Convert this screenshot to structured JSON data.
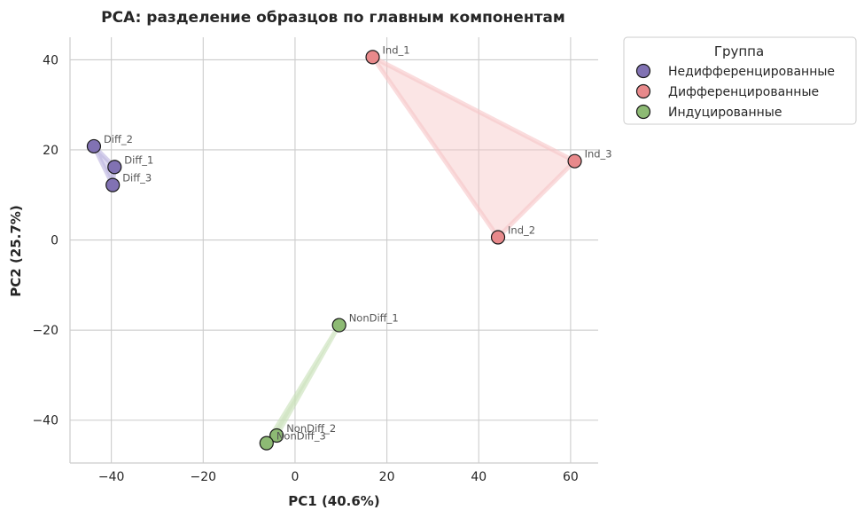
{
  "chart_data": {
    "type": "scatter",
    "title": "PCA: разделение образцов по главным компонентам",
    "xlabel": "PC1 (40.6%)",
    "ylabel": "PC2 (25.7%)",
    "xlim": [
      -49,
      66
    ],
    "ylim": [
      -49.5,
      45
    ],
    "xticks": [
      -40,
      -20,
      0,
      20,
      40,
      60
    ],
    "yticks": [
      -40,
      -20,
      0,
      20,
      40
    ],
    "xtick_labels": [
      "−40",
      "−20",
      "0",
      "20",
      "40",
      "60"
    ],
    "ytick_labels": [
      "−40",
      "−20",
      "0",
      "20",
      "40"
    ],
    "grid": true,
    "legend": {
      "title": "Группа",
      "placement": "outside-upper-right"
    },
    "series": [
      {
        "name": "Недифференцированные",
        "color": "#8172b3",
        "hull_color": "#b9b0dd",
        "points": [
          {
            "label": "Diff_2",
            "x": -43.8,
            "y": 20.8
          },
          {
            "label": "Diff_1",
            "x": -39.3,
            "y": 16.2
          },
          {
            "label": "Diff_3",
            "x": -39.7,
            "y": 12.2
          }
        ]
      },
      {
        "name": "Дифференцированные",
        "color": "#e8898b",
        "hull_color": "#f7c5c6",
        "points": [
          {
            "label": "Ind_1",
            "x": 16.9,
            "y": 40.6
          },
          {
            "label": "Ind_3",
            "x": 60.9,
            "y": 17.5
          },
          {
            "label": "Ind_2",
            "x": 44.2,
            "y": 0.6
          }
        ]
      },
      {
        "name": "Индуцированные",
        "color": "#8dba74",
        "hull_color": "#c6e0b6",
        "points": [
          {
            "label": "NonDiff_1",
            "x": 9.6,
            "y": -18.9
          },
          {
            "label": "NonDiff_2",
            "x": -4.0,
            "y": -43.4
          },
          {
            "label": "NonDiff_3",
            "x": -6.2,
            "y": -45.1
          }
        ]
      }
    ]
  }
}
